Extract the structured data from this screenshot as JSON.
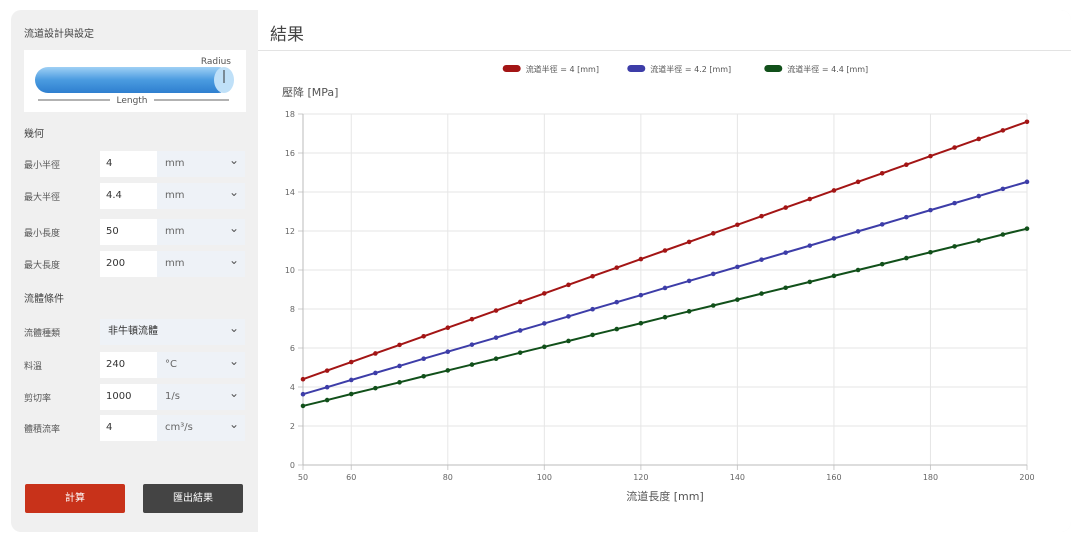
{
  "sidebar": {
    "title": "流道設計與設定",
    "diagram": {
      "radius": "Radius",
      "length": "Length"
    },
    "geometry": {
      "title": "幾何",
      "fields": [
        {
          "label": "最小半徑",
          "value": "4",
          "unit": "mm"
        },
        {
          "label": "最大半徑",
          "value": "4.4",
          "unit": "mm"
        },
        {
          "label": "最小長度",
          "value": "50",
          "unit": "mm"
        },
        {
          "label": "最大長度",
          "value": "200",
          "unit": "mm"
        }
      ]
    },
    "fluid": {
      "title": "流體條件",
      "type": {
        "label": "流體種類",
        "value": "非牛頓流體"
      },
      "fields": [
        {
          "label": "料溫",
          "value": "240",
          "unit": "°C"
        },
        {
          "label": "剪切率",
          "value": "1000",
          "unit": "1/s"
        },
        {
          "label": "體積流率",
          "value": "4",
          "unit": "cm³/s"
        }
      ]
    },
    "buttons": {
      "calculate": "計算",
      "export": "匯出結果"
    }
  },
  "main": {
    "title": "結果"
  },
  "chart_data": {
    "type": "line",
    "y_label": "壓降 [MPa]",
    "x_label": "流道長度 [mm]",
    "x": [
      50,
      55,
      60,
      65,
      70,
      75,
      80,
      85,
      90,
      95,
      100,
      105,
      110,
      115,
      120,
      125,
      130,
      135,
      140,
      145,
      150,
      155,
      160,
      165,
      170,
      175,
      180,
      185,
      190,
      195,
      200
    ],
    "series": [
      {
        "name": "流道半徑 = 4 [mm]",
        "color": "#a31515",
        "values": [
          4.4,
          4.84,
          5.28,
          5.72,
          6.16,
          6.6,
          7.04,
          7.48,
          7.92,
          8.36,
          8.8,
          9.24,
          9.68,
          10.12,
          10.56,
          11.0,
          11.44,
          11.88,
          12.32,
          12.76,
          13.2,
          13.64,
          14.08,
          14.52,
          14.96,
          15.4,
          15.84,
          16.28,
          16.72,
          17.16,
          17.6
        ]
      },
      {
        "name": "流道半徑 = 4.2 [mm]",
        "color": "#3d3da8",
        "values": [
          3.63,
          3.99,
          4.36,
          4.72,
          5.08,
          5.45,
          5.81,
          6.17,
          6.53,
          6.9,
          7.26,
          7.62,
          7.99,
          8.35,
          8.71,
          9.08,
          9.44,
          9.8,
          10.16,
          10.53,
          10.89,
          11.25,
          11.62,
          11.98,
          12.34,
          12.71,
          13.07,
          13.43,
          13.79,
          14.16,
          14.52
        ]
      },
      {
        "name": "流道半徑 = 4.4 [mm]",
        "color": "#11501a",
        "values": [
          3.03,
          3.33,
          3.64,
          3.94,
          4.24,
          4.55,
          4.85,
          5.15,
          5.45,
          5.76,
          6.06,
          6.36,
          6.67,
          6.97,
          7.27,
          7.58,
          7.88,
          8.18,
          8.48,
          8.79,
          9.09,
          9.39,
          9.7,
          10,
          10.3,
          10.61,
          10.91,
          11.21,
          11.51,
          11.82,
          12.12
        ]
      }
    ],
    "xlim": [
      50,
      200
    ],
    "xticks": [
      50,
      60,
      80,
      100,
      120,
      140,
      160,
      180,
      200
    ],
    "ylim": [
      0,
      18
    ],
    "yticks": [
      0,
      2,
      4,
      6,
      8,
      10,
      12,
      14,
      16,
      18
    ],
    "grid": true
  }
}
